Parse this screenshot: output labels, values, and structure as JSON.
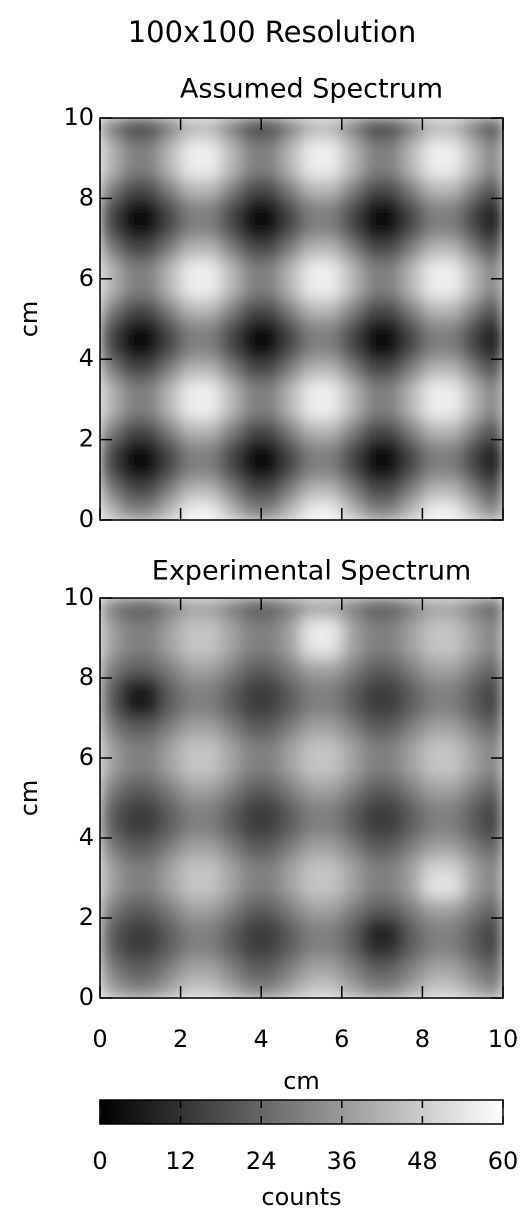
{
  "title": "100x100 Resolution",
  "chart_data": [
    {
      "type": "heatmap",
      "title": "Assumed Spectrum",
      "ylabel": "cm",
      "xlim": [
        0,
        10
      ],
      "ylim": [
        0,
        10
      ],
      "xticks": [
        0,
        2,
        4,
        6,
        8,
        10
      ],
      "yticks": [
        0,
        2,
        4,
        6,
        8,
        10
      ],
      "z": [
        [
          43,
          30,
          30,
          43,
          56,
          56,
          43,
          30,
          30,
          43,
          56,
          56,
          43,
          30,
          30,
          43,
          56,
          56,
          43,
          30
        ],
        [
          30,
          17,
          17,
          30,
          43,
          43,
          30,
          17,
          17,
          30,
          43,
          43,
          30,
          17,
          17,
          30,
          43,
          43,
          30,
          17
        ],
        [
          17,
          4,
          4,
          17,
          30,
          30,
          17,
          4,
          4,
          17,
          30,
          30,
          17,
          4,
          4,
          17,
          30,
          30,
          17,
          4
        ],
        [
          17,
          4,
          4,
          17,
          30,
          30,
          17,
          4,
          4,
          17,
          30,
          30,
          17,
          4,
          4,
          17,
          30,
          30,
          17,
          4
        ],
        [
          30,
          17,
          17,
          30,
          43,
          43,
          30,
          17,
          17,
          30,
          43,
          43,
          30,
          17,
          17,
          30,
          43,
          43,
          30,
          17
        ],
        [
          43,
          30,
          30,
          43,
          56,
          56,
          43,
          30,
          30,
          43,
          56,
          56,
          43,
          30,
          30,
          43,
          56,
          56,
          43,
          30
        ],
        [
          43,
          30,
          30,
          43,
          56,
          56,
          43,
          30,
          30,
          43,
          56,
          56,
          43,
          30,
          30,
          43,
          56,
          56,
          43,
          30
        ],
        [
          30,
          17,
          17,
          30,
          43,
          43,
          30,
          17,
          17,
          30,
          43,
          43,
          30,
          17,
          17,
          30,
          43,
          43,
          30,
          17
        ],
        [
          17,
          4,
          4,
          17,
          30,
          30,
          17,
          4,
          4,
          17,
          30,
          30,
          17,
          4,
          4,
          17,
          30,
          30,
          17,
          4
        ],
        [
          17,
          4,
          4,
          17,
          30,
          30,
          17,
          4,
          4,
          17,
          30,
          30,
          17,
          4,
          4,
          17,
          30,
          30,
          17,
          4
        ],
        [
          30,
          17,
          17,
          30,
          43,
          43,
          30,
          17,
          17,
          30,
          43,
          43,
          30,
          17,
          17,
          30,
          43,
          43,
          30,
          17
        ],
        [
          43,
          30,
          30,
          43,
          56,
          56,
          43,
          30,
          30,
          43,
          56,
          56,
          43,
          30,
          30,
          43,
          56,
          56,
          43,
          30
        ],
        [
          43,
          30,
          30,
          43,
          56,
          56,
          43,
          30,
          30,
          43,
          56,
          56,
          43,
          30,
          30,
          43,
          56,
          56,
          43,
          30
        ],
        [
          30,
          17,
          17,
          30,
          43,
          43,
          30,
          17,
          17,
          30,
          43,
          43,
          30,
          17,
          17,
          30,
          43,
          43,
          30,
          17
        ],
        [
          17,
          4,
          4,
          17,
          30,
          30,
          17,
          4,
          4,
          17,
          30,
          30,
          17,
          4,
          4,
          17,
          30,
          30,
          17,
          4
        ],
        [
          17,
          4,
          4,
          17,
          30,
          30,
          17,
          4,
          4,
          17,
          30,
          30,
          17,
          4,
          4,
          17,
          30,
          30,
          17,
          4
        ],
        [
          30,
          17,
          17,
          30,
          43,
          43,
          30,
          17,
          17,
          30,
          43,
          43,
          30,
          17,
          17,
          30,
          43,
          43,
          30,
          17
        ],
        [
          43,
          30,
          30,
          43,
          56,
          56,
          43,
          30,
          30,
          43,
          56,
          56,
          43,
          30,
          30,
          43,
          56,
          56,
          43,
          30
        ],
        [
          43,
          30,
          30,
          43,
          56,
          56,
          43,
          30,
          30,
          43,
          56,
          56,
          43,
          30,
          30,
          43,
          56,
          56,
          43,
          30
        ],
        [
          30,
          17,
          17,
          30,
          43,
          43,
          30,
          17,
          17,
          30,
          43,
          43,
          30,
          17,
          17,
          30,
          43,
          43,
          30,
          17
        ]
      ]
    },
    {
      "type": "heatmap",
      "title": "Experimental Spectrum",
      "xlabel": "cm",
      "ylabel": "cm",
      "xlim": [
        0,
        10
      ],
      "ylim": [
        0,
        10
      ],
      "xticks": [
        0,
        2,
        4,
        6,
        8,
        10
      ],
      "yticks": [
        0,
        2,
        4,
        6,
        8,
        10
      ],
      "z": [
        [
          38,
          30,
          30,
          38,
          46,
          46,
          38,
          30,
          30,
          38,
          46,
          46,
          38,
          30,
          30,
          38,
          46,
          46,
          38,
          30
        ],
        [
          30,
          22,
          22,
          30,
          38,
          38,
          30,
          22,
          22,
          30,
          38,
          38,
          30,
          22,
          22,
          30,
          38,
          38,
          30,
          22
        ],
        [
          22,
          14,
          14,
          22,
          30,
          30,
          22,
          14,
          14,
          22,
          30,
          30,
          22,
          10,
          10,
          22,
          30,
          30,
          22,
          14
        ],
        [
          22,
          14,
          14,
          22,
          30,
          30,
          22,
          14,
          14,
          22,
          30,
          30,
          22,
          8,
          8,
          22,
          30,
          30,
          22,
          14
        ],
        [
          30,
          22,
          22,
          30,
          38,
          38,
          30,
          22,
          22,
          30,
          38,
          38,
          30,
          22,
          22,
          30,
          38,
          38,
          30,
          22
        ],
        [
          38,
          30,
          30,
          38,
          46,
          46,
          38,
          30,
          30,
          38,
          46,
          46,
          38,
          30,
          30,
          38,
          54,
          54,
          38,
          30
        ],
        [
          38,
          30,
          30,
          38,
          46,
          46,
          38,
          30,
          30,
          38,
          46,
          46,
          38,
          30,
          30,
          38,
          50,
          50,
          38,
          30
        ],
        [
          30,
          22,
          22,
          30,
          38,
          38,
          30,
          22,
          22,
          30,
          38,
          38,
          30,
          22,
          22,
          30,
          38,
          38,
          30,
          22
        ],
        [
          22,
          14,
          14,
          22,
          30,
          30,
          22,
          14,
          14,
          22,
          30,
          30,
          22,
          14,
          14,
          22,
          30,
          30,
          22,
          14
        ],
        [
          22,
          14,
          14,
          22,
          30,
          30,
          22,
          14,
          14,
          22,
          30,
          30,
          22,
          14,
          14,
          22,
          30,
          30,
          22,
          14
        ],
        [
          30,
          22,
          22,
          30,
          38,
          38,
          30,
          22,
          22,
          30,
          38,
          38,
          30,
          22,
          22,
          30,
          38,
          38,
          30,
          22
        ],
        [
          38,
          30,
          30,
          38,
          46,
          46,
          38,
          30,
          30,
          38,
          46,
          46,
          38,
          30,
          30,
          38,
          46,
          46,
          38,
          30
        ],
        [
          38,
          30,
          30,
          38,
          46,
          46,
          38,
          30,
          30,
          38,
          46,
          46,
          38,
          30,
          30,
          38,
          46,
          46,
          38,
          30
        ],
        [
          30,
          22,
          22,
          30,
          38,
          38,
          30,
          22,
          22,
          30,
          38,
          38,
          30,
          22,
          22,
          30,
          38,
          38,
          30,
          22
        ],
        [
          22,
          6,
          6,
          22,
          30,
          30,
          22,
          14,
          14,
          22,
          30,
          30,
          22,
          14,
          14,
          22,
          30,
          30,
          22,
          14
        ],
        [
          22,
          5,
          5,
          22,
          30,
          30,
          22,
          14,
          14,
          22,
          30,
          30,
          22,
          14,
          14,
          22,
          30,
          30,
          22,
          14
        ],
        [
          30,
          22,
          22,
          30,
          38,
          38,
          30,
          22,
          22,
          30,
          38,
          38,
          30,
          22,
          22,
          30,
          38,
          38,
          30,
          22
        ],
        [
          38,
          30,
          30,
          38,
          46,
          46,
          38,
          30,
          30,
          38,
          54,
          54,
          38,
          30,
          30,
          38,
          46,
          46,
          38,
          30
        ],
        [
          38,
          30,
          30,
          38,
          46,
          46,
          38,
          30,
          30,
          38,
          56,
          56,
          38,
          30,
          30,
          38,
          46,
          46,
          38,
          30
        ],
        [
          30,
          22,
          22,
          30,
          38,
          38,
          30,
          22,
          22,
          30,
          38,
          38,
          30,
          22,
          22,
          30,
          38,
          38,
          30,
          22
        ]
      ]
    }
  ],
  "colorbar": {
    "zlim": [
      0,
      60
    ],
    "ticks": [
      0,
      12,
      24,
      36,
      48,
      60
    ],
    "label": "counts"
  }
}
